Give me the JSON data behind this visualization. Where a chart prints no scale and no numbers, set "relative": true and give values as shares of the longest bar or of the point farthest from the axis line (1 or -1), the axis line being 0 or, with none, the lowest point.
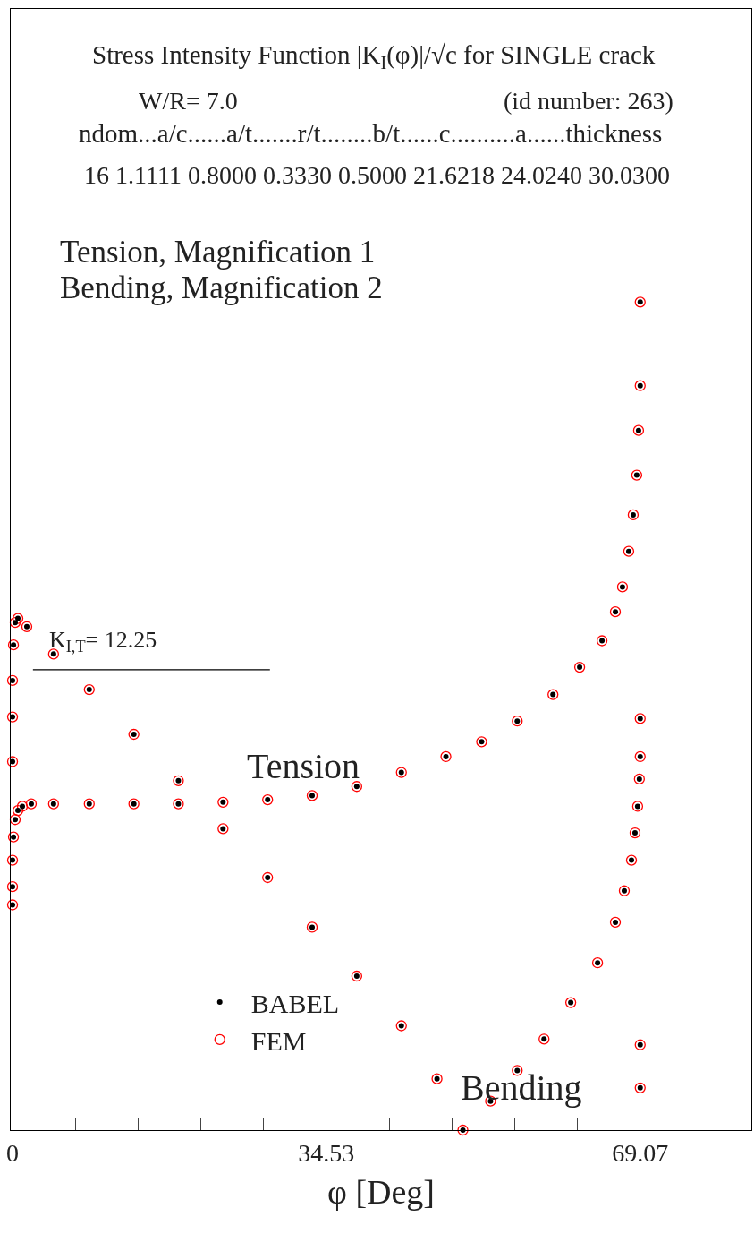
{
  "chart_data": {
    "type": "scatter",
    "relative": true,
    "marker": "circle",
    "legend": "bottom left",
    "xlabel": "φ [Deg]",
    "xlim": [
      -0.2,
      81.3
    ],
    "xticks": [
      0,
      {
        "value": 6.907,
        "label": null
      },
      {
        "value": 13.814,
        "label": null
      },
      {
        "value": 20.721,
        "label": null
      },
      {
        "value": 27.628,
        "label": null
      },
      34.53,
      {
        "value": 41.442,
        "label": null
      },
      {
        "value": 48.349,
        "label": null
      },
      {
        "value": 55.256,
        "label": null
      },
      {
        "value": 62.163,
        "label": null
      },
      69.07
    ],
    "series": [
      {
        "name": "FEM",
        "color": "#ff0000",
        "x": [
          0,
          0,
          0,
          0.1,
          0.29,
          0.59,
          1.08,
          2.06,
          4.51,
          8.44,
          13.35,
          18.25,
          23.16,
          28.07,
          32.97,
          37.88,
          42.79,
          47.69,
          51.62,
          55.54,
          59.47,
          62.41,
          64.87,
          66.34,
          67.12,
          67.81,
          68.3,
          68.69,
          68.89,
          69.07,
          69.07
        ],
        "values": [
          0.272,
          0.294,
          0.326,
          0.354,
          0.375,
          0.386,
          0.391,
          0.394,
          0.394,
          0.394,
          0.394,
          0.394,
          0.396,
          0.399,
          0.404,
          0.415,
          0.432,
          0.451,
          0.469,
          0.494,
          0.526,
          0.559,
          0.591,
          0.626,
          0.656,
          0.699,
          0.743,
          0.791,
          0.845,
          0.899,
          1
        ]
      },
      {
        "color": "#ff0000",
        "x": [
          0,
          0,
          0,
          0.1,
          0.29,
          0.59,
          1.57,
          4.51,
          8.44,
          13.35,
          18.25,
          23.16,
          28.07,
          32.97,
          37.88,
          42.79,
          46.71,
          49.56,
          52.6,
          55.54,
          58.49,
          61.43,
          64.38,
          66.34,
          67.32,
          68.11,
          68.5,
          68.79,
          68.98,
          69.07,
          69.07,
          69.07,
          69.07
        ],
        "values": [
          0.445,
          0.499,
          0.543,
          0.586,
          0.613,
          0.618,
          0.608,
          0.575,
          0.532,
          0.478,
          0.422,
          0.364,
          0.305,
          0.245,
          0.186,
          0.126,
          0.062,
          0,
          0.035,
          0.072,
          0.11,
          0.154,
          0.202,
          0.251,
          0.289,
          0.326,
          0.359,
          0.391,
          0.424,
          0.451,
          0.497,
          0.103,
          0.051
        ]
      },
      {
        "name": "BABEL",
        "color": "#000000",
        "x": [
          0,
          0,
          0,
          0.1,
          0.29,
          0.59,
          1.08,
          2.06,
          4.51,
          8.44,
          13.35,
          18.25,
          23.16,
          28.07,
          32.97,
          37.88,
          42.79,
          47.69,
          51.62,
          55.54,
          59.47,
          62.41,
          64.87,
          66.34,
          67.12,
          67.81,
          68.3,
          68.69,
          68.89,
          69.07,
          69.07
        ],
        "values": [
          0.272,
          0.294,
          0.326,
          0.354,
          0.375,
          0.386,
          0.391,
          0.394,
          0.394,
          0.394,
          0.394,
          0.394,
          0.396,
          0.399,
          0.404,
          0.415,
          0.432,
          0.451,
          0.469,
          0.494,
          0.526,
          0.559,
          0.591,
          0.626,
          0.656,
          0.699,
          0.743,
          0.791,
          0.845,
          0.899,
          1
        ]
      },
      {
        "color": "#000000",
        "x": [
          0,
          0,
          0,
          0.1,
          0.29,
          0.59,
          1.57,
          4.51,
          8.44,
          13.35,
          18.25,
          23.16,
          28.07,
          32.97,
          37.88,
          42.79,
          46.71,
          49.56,
          52.6,
          55.54,
          58.49,
          61.43,
          64.38,
          66.34,
          67.32,
          68.11,
          68.5,
          68.79,
          68.98,
          69.07,
          69.07,
          69.07,
          69.07
        ],
        "values": [
          0.445,
          0.499,
          0.543,
          0.586,
          0.613,
          0.618,
          0.608,
          0.575,
          0.532,
          0.478,
          0.422,
          0.364,
          0.305,
          0.245,
          0.186,
          0.126,
          0.062,
          0,
          0.035,
          0.072,
          0.11,
          0.154,
          0.202,
          0.251,
          0.289,
          0.326,
          0.359,
          0.391,
          0.424,
          0.451,
          0.497,
          0.103,
          0.051
        ]
      }
    ],
    "ref_lines": [
      {
        "axis": "y",
        "value": 0.556,
        "color": "#000000"
      }
    ],
    "annotations": [
      "Stress Intensity Function |K$_{I}$(φ)|/√c for SINGLE crack",
      "W/R= 7.0",
      "(id number: 263)",
      "ndom...a/c......a/t.......r/t........b/t......c..........a......thickness",
      "16 1.1111 0.8000 0.3330 0.5000 21.6218 24.0240 30.0300",
      "Tension, Magnification 1",
      "Bending, Magnification 2",
      "Tension",
      "Bending",
      "K$_{I,T}$= 12.25"
    ]
  }
}
